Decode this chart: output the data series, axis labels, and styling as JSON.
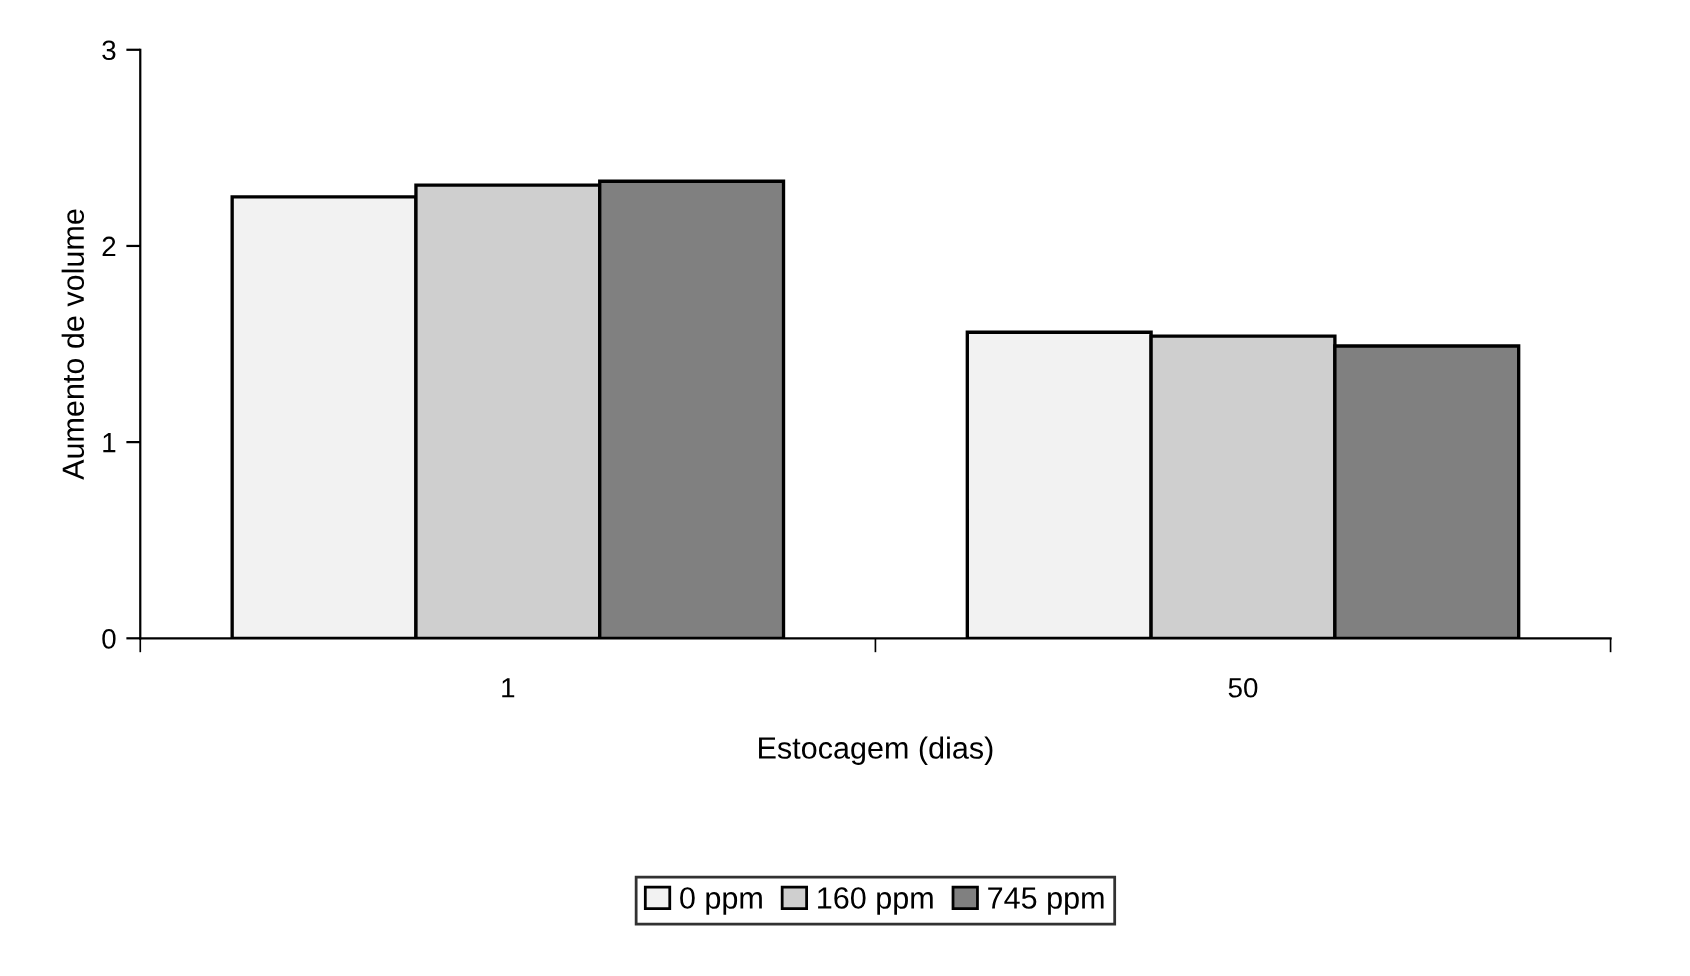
{
  "chart_data": {
    "type": "bar",
    "xlabel": "Estocagem (dias)",
    "ylabel": "Aumento de volume",
    "categories": [
      "1",
      "50"
    ],
    "series": [
      {
        "name": "0 ppm",
        "color": "#f2f2f2",
        "values": [
          2.25,
          1.56
        ]
      },
      {
        "name": "160 ppm",
        "color": "#cfcfcf",
        "values": [
          2.31,
          1.54
        ]
      },
      {
        "name": "745 ppm",
        "color": "#808080",
        "values": [
          2.33,
          1.49
        ]
      }
    ],
    "ylim": [
      0,
      3
    ],
    "yticks": [
      0,
      1,
      2,
      3
    ],
    "grid": false,
    "legend": "bottom"
  }
}
